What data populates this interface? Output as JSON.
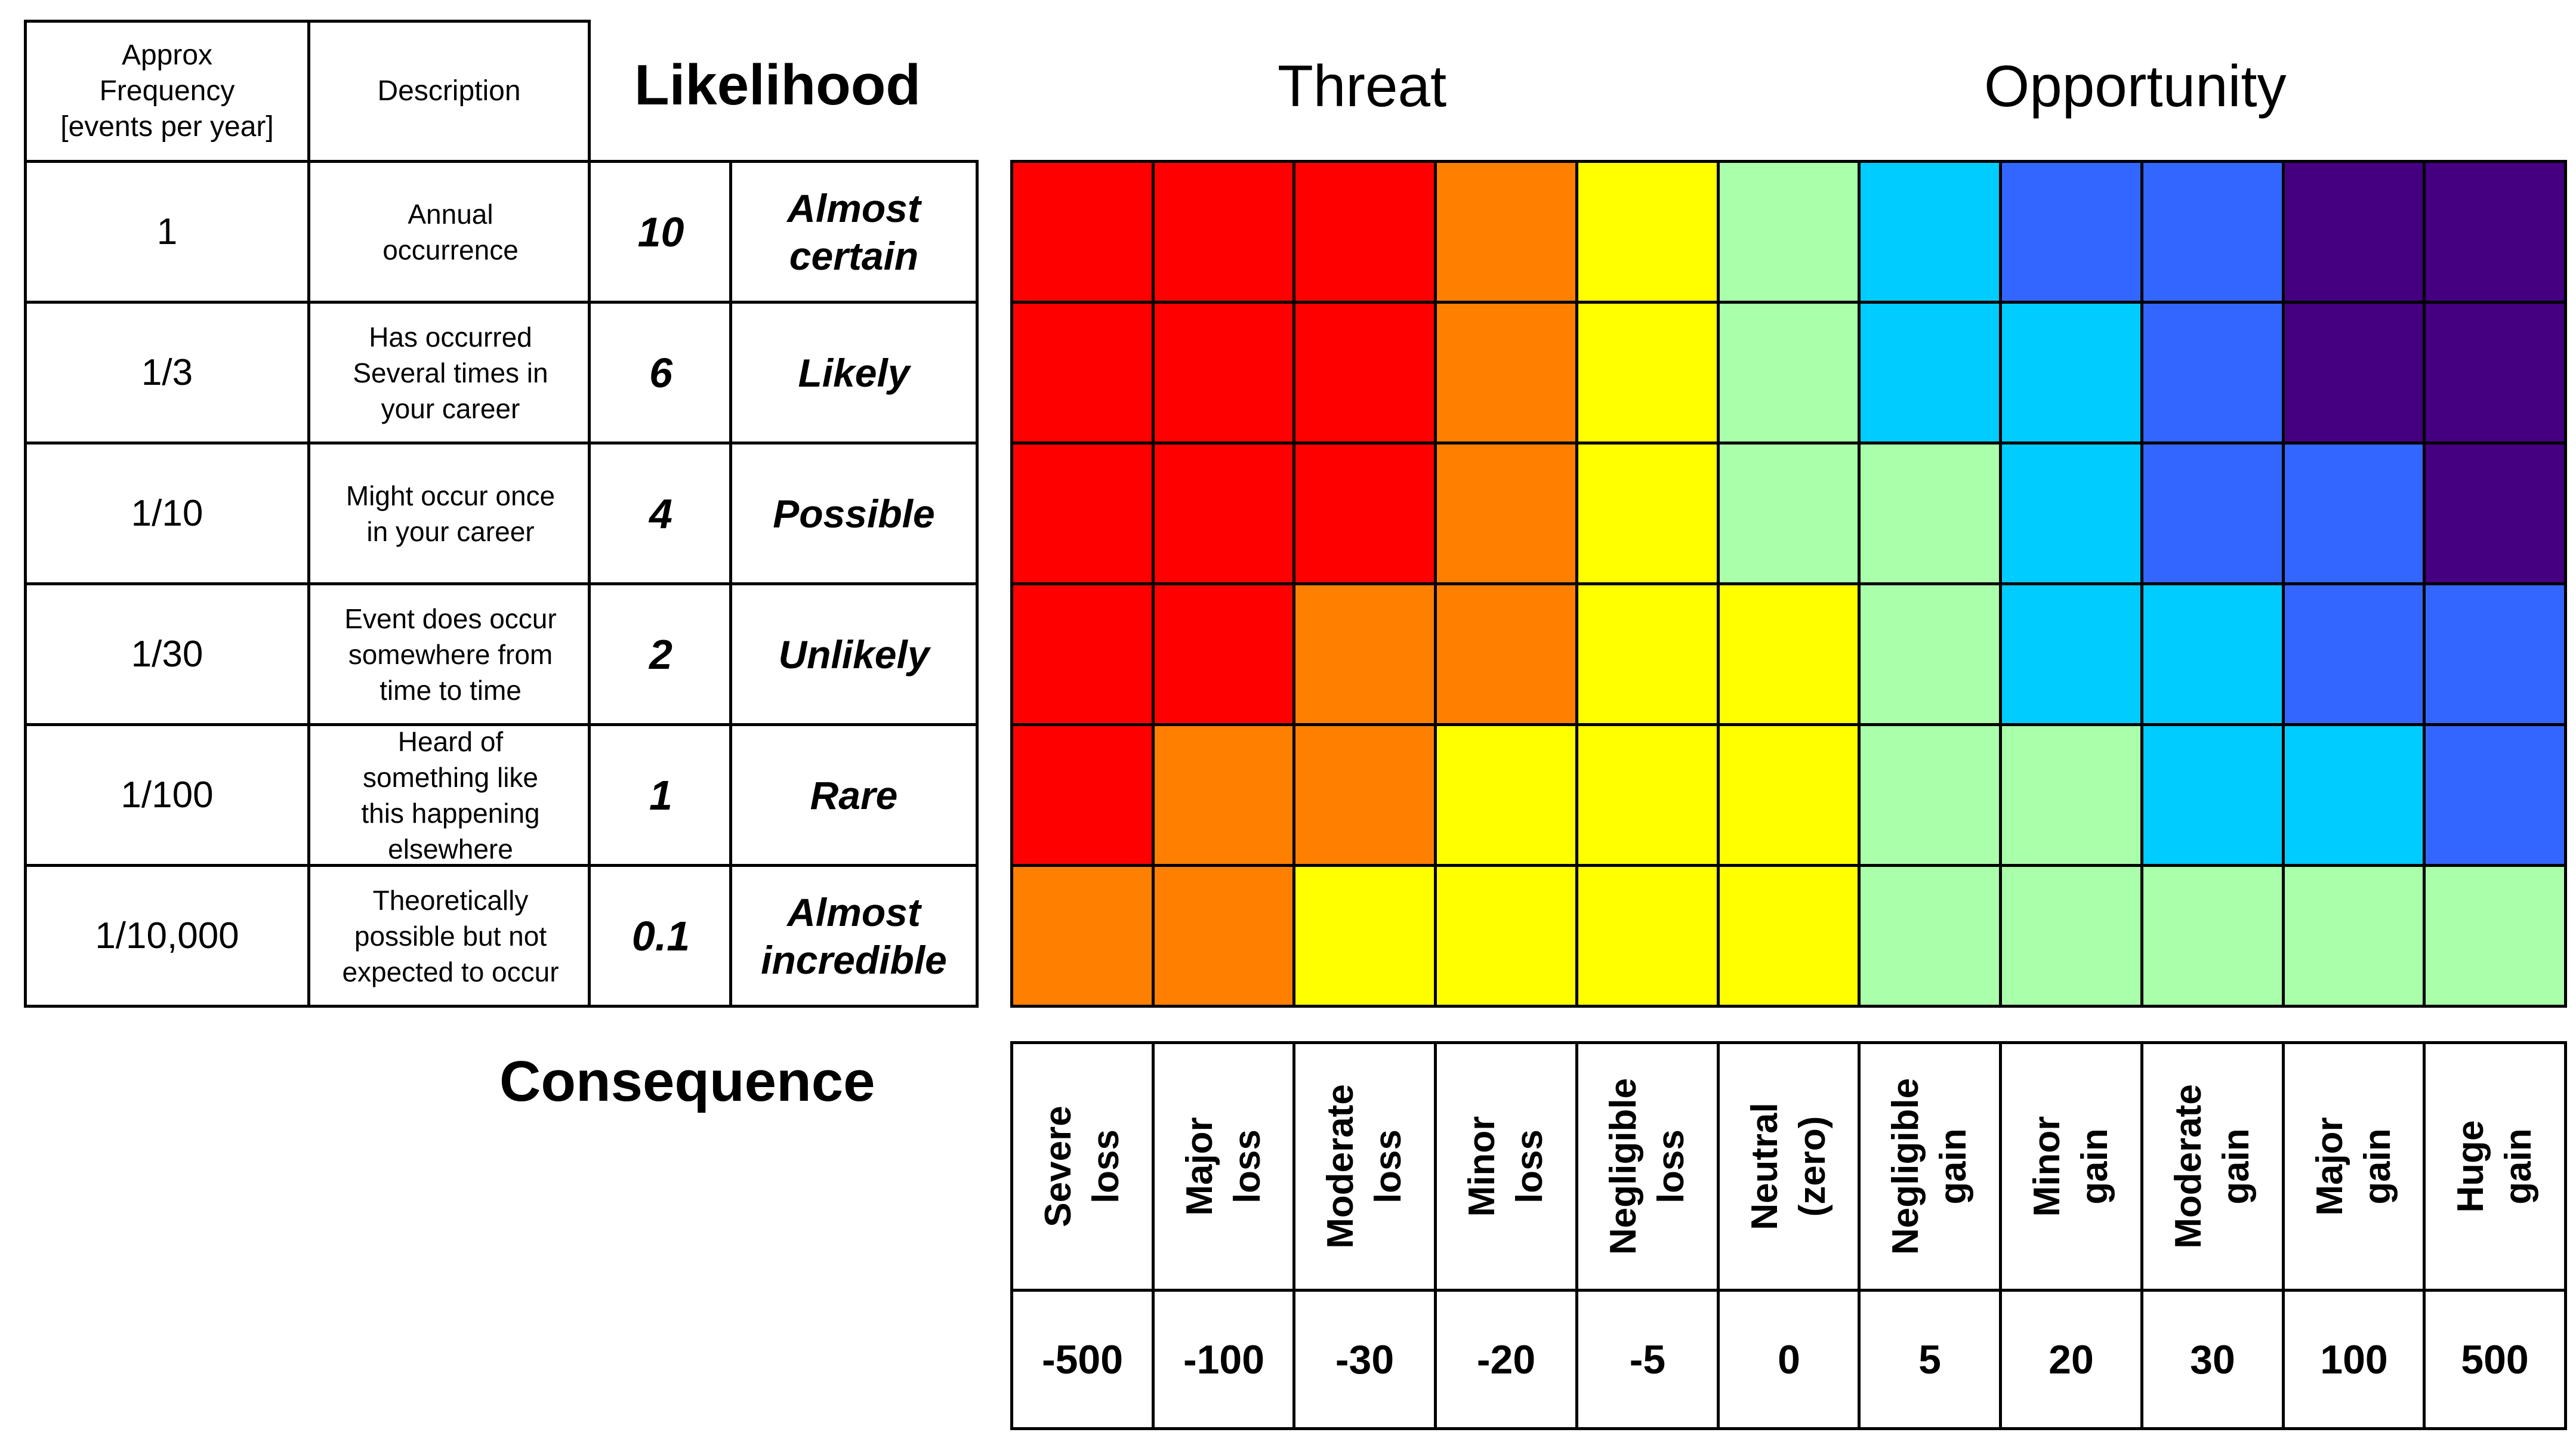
{
  "header": {
    "frequency": "Approx\nFrequency\n[events per year]",
    "description": "Description",
    "likelihood": "Likelihood",
    "threat": "Threat",
    "opportunity": "Opportunity",
    "consequence": "Consequence"
  },
  "rows": [
    {
      "frequency": "1",
      "description": "Annual\noccurrence",
      "score": "10",
      "label": "Almost\ncertain",
      "colors": [
        "#FF0000",
        "#FF0000",
        "#FF0000",
        "#FF8000",
        "#FFFF00",
        "#AAFFAA",
        "#00CCFF",
        "#3366FF",
        "#3366FF",
        "#440080",
        "#440080"
      ]
    },
    {
      "frequency": "1/3",
      "description": "Has occurred\nSeveral times in\nyour career",
      "score": "6",
      "label": "Likely",
      "colors": [
        "#FF0000",
        "#FF0000",
        "#FF0000",
        "#FF8000",
        "#FFFF00",
        "#AAFFAA",
        "#00CCFF",
        "#00CCFF",
        "#3366FF",
        "#440080",
        "#440080"
      ]
    },
    {
      "frequency": "1/10",
      "description": "Might occur once\nin your career",
      "score": "4",
      "label": "Possible",
      "colors": [
        "#FF0000",
        "#FF0000",
        "#FF0000",
        "#FF8000",
        "#FFFF00",
        "#AAFFAA",
        "#AAFFAA",
        "#00CCFF",
        "#3366FF",
        "#3366FF",
        "#440080"
      ]
    },
    {
      "frequency": "1/30",
      "description": "Event does occur\nsomewhere from\ntime to time",
      "score": "2",
      "label": "Unlikely",
      "colors": [
        "#FF0000",
        "#FF0000",
        "#FF8000",
        "#FF8000",
        "#FFFF00",
        "#FFFF00",
        "#AAFFAA",
        "#00CCFF",
        "#00CCFF",
        "#3366FF",
        "#3366FF"
      ]
    },
    {
      "frequency": "1/100",
      "description": "Heard of\nsomething like\nthis happening\nelsewhere",
      "score": "1",
      "label": "Rare",
      "colors": [
        "#FF0000",
        "#FF8000",
        "#FF8000",
        "#FFFF00",
        "#FFFF00",
        "#FFFF00",
        "#AAFFAA",
        "#AAFFAA",
        "#00CCFF",
        "#00CCFF",
        "#3366FF"
      ]
    },
    {
      "frequency": "1/10,000",
      "description": "Theoretically\npossible but not\nexpected to occur",
      "score": "0.1",
      "label": "Almost\nincredible",
      "colors": [
        "#FF8000",
        "#FF8000",
        "#FFFF00",
        "#FFFF00",
        "#FFFF00",
        "#FFFF00",
        "#AAFFAA",
        "#AAFFAA",
        "#AAFFAA",
        "#AAFFAA",
        "#AAFFAA"
      ]
    }
  ],
  "consequences": [
    {
      "name": "Severe\nloss",
      "value": "-500"
    },
    {
      "name": "Major\nloss",
      "value": "-100"
    },
    {
      "name": "Moderate\nloss",
      "value": "-30"
    },
    {
      "name": "Minor\nloss",
      "value": "-20"
    },
    {
      "name": "Negligible\nloss",
      "value": "-5"
    },
    {
      "name": "Neutral\n(zero)",
      "value": "0"
    },
    {
      "name": "Negligible\ngain",
      "value": "5"
    },
    {
      "name": "Minor\ngain",
      "value": "20"
    },
    {
      "name": "Moderate\ngain",
      "value": "30"
    },
    {
      "name": "Major\ngain",
      "value": "100"
    },
    {
      "name": "Huge\ngain",
      "value": "500"
    }
  ]
}
